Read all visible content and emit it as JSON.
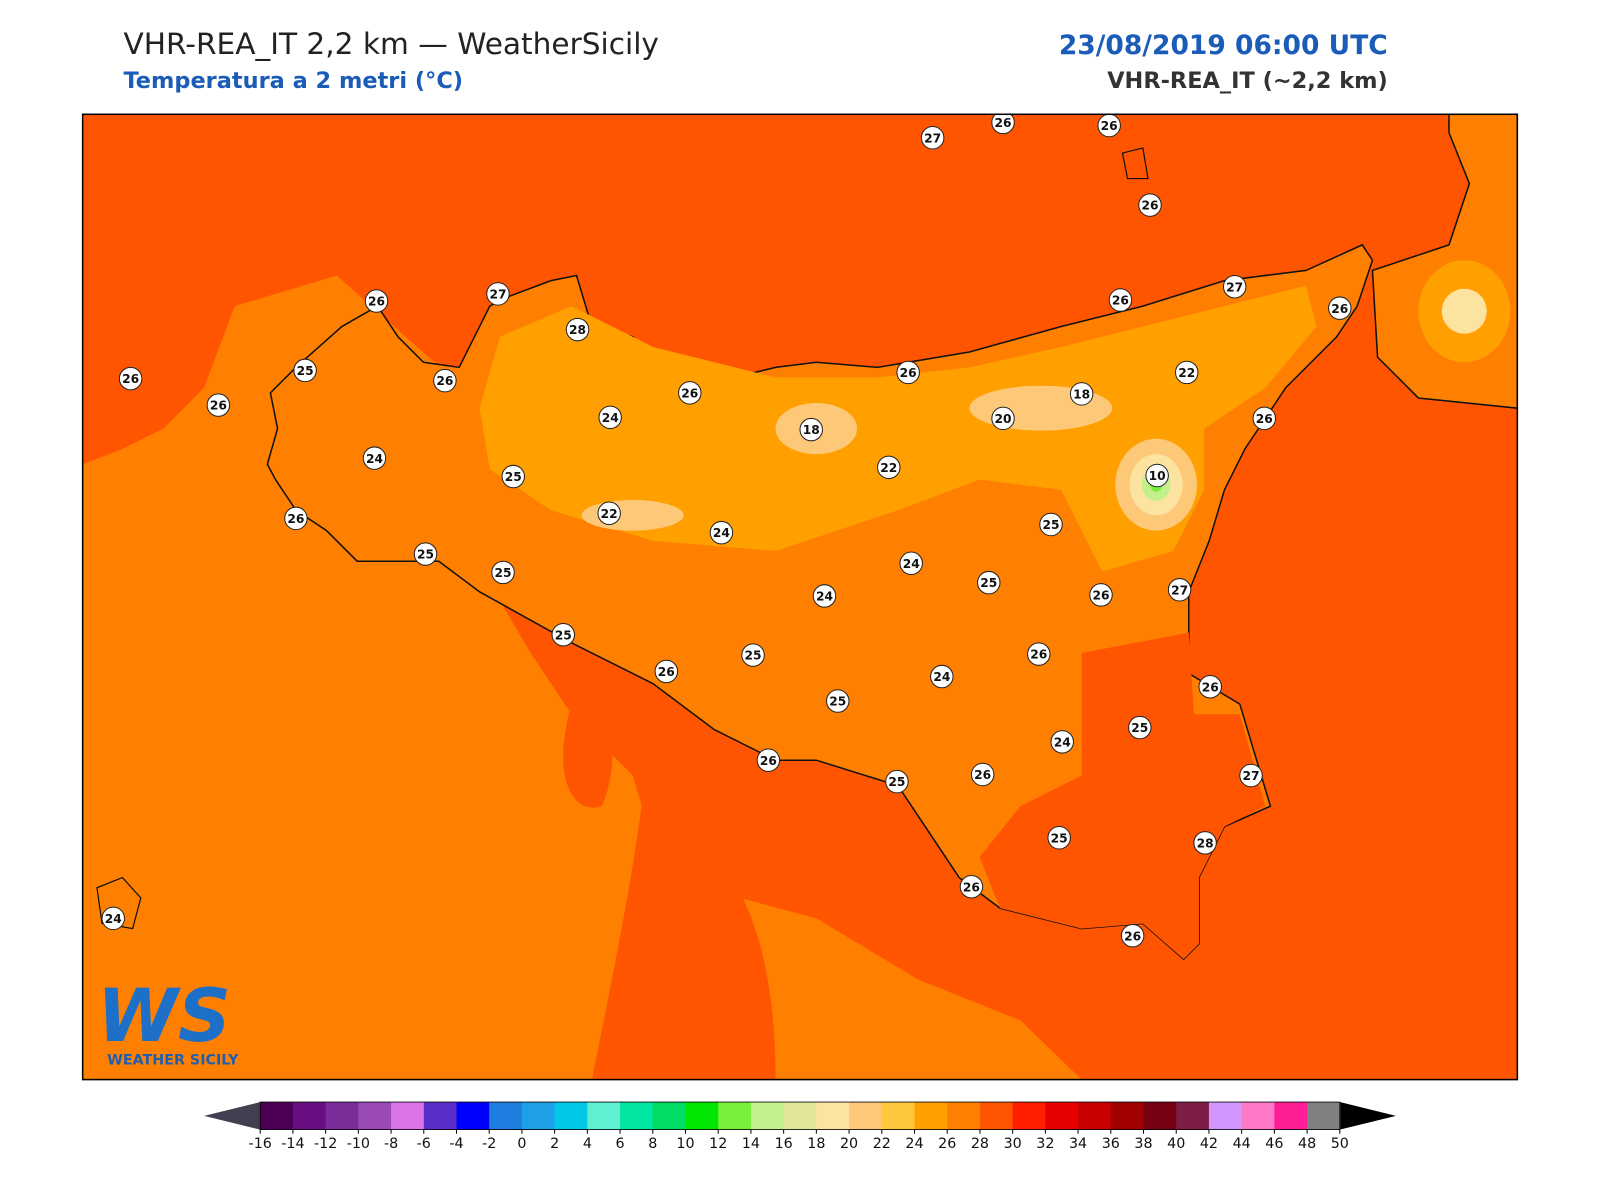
{
  "header": {
    "title": "VHR-REA_IT 2,2 km — WeatherSicily",
    "subtitle": "Temperatura a 2 metri (°C)",
    "datetime": "23/08/2019 06:00 UTC",
    "model": "VHR-REA_IT (~2,2 km)"
  },
  "stations": {
    "values": [
      27,
      26,
      26,
      26,
      26,
      26,
      25,
      26,
      26,
      27,
      28,
      24,
      26,
      18,
      26,
      22,
      20,
      18,
      26,
      22,
      27,
      26,
      26,
      10,
      25,
      24,
      25,
      26,
      22,
      24,
      25,
      25,
      24,
      24,
      25,
      26,
      27,
      25,
      25,
      26,
      26,
      24,
      25,
      26,
      25,
      24,
      26,
      25,
      26,
      27,
      25,
      28,
      26,
      26,
      24
    ]
  },
  "colorbar": {
    "ticks": [
      -16,
      -14,
      -12,
      -10,
      -8,
      -6,
      -4,
      -2,
      0,
      2,
      4,
      6,
      8,
      10,
      12,
      14,
      16,
      18,
      20,
      22,
      24,
      26,
      28,
      30,
      32,
      34,
      36,
      38,
      40,
      42,
      44,
      46,
      48,
      50
    ],
    "colors": [
      "#4b0055",
      "#6a0d83",
      "#7b2d9a",
      "#9a4ab5",
      "#dd73e8",
      "#5a2ec8",
      "#0000ff",
      "#1e7fe0",
      "#1ea0e6",
      "#00c8e6",
      "#5ef0d0",
      "#00e6a0",
      "#00dc64",
      "#00e600",
      "#78f03c",
      "#c3f08c",
      "#e1e696",
      "#fde3a0",
      "#fdc878",
      "#ffc83c",
      "#ffa000",
      "#ff8000",
      "#ff5500",
      "#ff1e00",
      "#e60000",
      "#c80000",
      "#a00000",
      "#780014",
      "#7d1e46",
      "#d296ff",
      "#ff78c8",
      "#ff1e96",
      "#808080",
      "#3c3c3c"
    ],
    "under_color": "#404050",
    "over_color": "#000000"
  },
  "logo": {
    "mark": "WS",
    "name": "WEATHER SICILY"
  }
}
